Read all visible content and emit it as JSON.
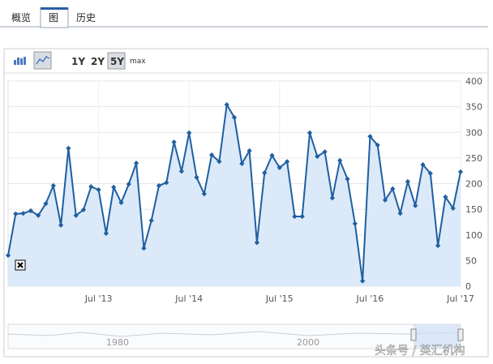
{
  "tabs": [
    "概览",
    "图",
    "历史"
  ],
  "range_buttons": [
    "1Y",
    "2Y",
    "5Y",
    "max"
  ],
  "navigator_labels": [
    "1980",
    "2000"
  ],
  "watermark": "头条号 / 英汇机构",
  "chart_data": {
    "type": "area",
    "x": [
      "2012-07",
      "2012-08",
      "2012-09",
      "2012-10",
      "2012-11",
      "2012-12",
      "2013-01",
      "2013-02",
      "2013-03",
      "2013-04",
      "2013-05",
      "2013-06",
      "2013-07",
      "2013-08",
      "2013-09",
      "2013-10",
      "2013-11",
      "2013-12",
      "2014-01",
      "2014-02",
      "2014-03",
      "2014-04",
      "2014-05",
      "2014-06",
      "2014-07",
      "2014-08",
      "2014-09",
      "2014-10",
      "2014-11",
      "2014-12",
      "2015-01",
      "2015-02",
      "2015-03",
      "2015-04",
      "2015-05",
      "2015-06",
      "2015-07",
      "2015-08",
      "2015-09",
      "2015-10",
      "2015-11",
      "2015-12",
      "2016-01",
      "2016-02",
      "2016-03",
      "2016-04",
      "2016-05",
      "2016-06",
      "2016-07",
      "2016-08",
      "2016-09",
      "2016-10",
      "2016-11",
      "2016-12",
      "2017-01",
      "2017-02",
      "2017-03",
      "2017-04",
      "2017-05",
      "2017-06",
      "2017-07"
    ],
    "values": [
      60,
      141,
      142,
      147,
      138,
      161,
      196,
      119,
      269,
      138,
      149,
      194,
      188,
      103,
      193,
      163,
      199,
      240,
      74,
      128,
      196,
      202,
      281,
      224,
      299,
      212,
      180,
      256,
      243,
      354,
      329,
      239,
      264,
      85,
      221,
      255,
      231,
      243,
      136,
      136,
      299,
      253,
      262,
      172,
      245,
      209,
      122,
      10,
      292,
      275,
      168,
      190,
      142,
      204,
      157,
      237,
      220,
      79,
      174,
      152,
      223
    ],
    "color": "#1f5fa0",
    "fill": "#dbe9f9",
    "xlim": [
      "2012-07",
      "2017-07"
    ],
    "xticks": [
      {
        "value": "2013-07",
        "label": "Jul '13"
      },
      {
        "value": "2014-07",
        "label": "Jul '14"
      },
      {
        "value": "2015-07",
        "label": "Jul '15"
      },
      {
        "value": "2016-07",
        "label": "Jul '16"
      },
      {
        "value": "2017-07",
        "label": "Jul '17"
      }
    ],
    "ylim": [
      0,
      400
    ],
    "yticks": [
      0,
      50,
      100,
      150,
      200,
      250,
      300,
      350,
      400
    ],
    "grid": true
  }
}
